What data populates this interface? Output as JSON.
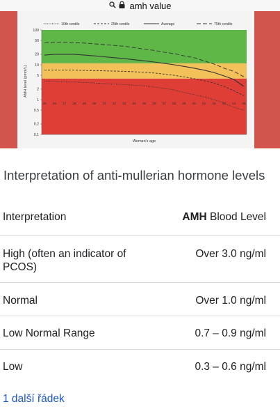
{
  "browser": {
    "search_icon": "search-icon",
    "lock_icon": "lock-icon",
    "url_text": "amh value"
  },
  "chart_data": {
    "type": "line",
    "xlabel": "Woman's age",
    "ylabel": "AMH level (pmol/L)",
    "x": [
      25,
      26,
      27,
      28,
      29,
      30,
      31,
      32,
      33,
      34,
      35,
      36,
      37,
      38,
      39,
      40,
      41,
      42,
      43,
      44,
      45
    ],
    "x_tick_labels": [
      "25",
      "26",
      "27",
      "28",
      "29",
      "30",
      "31",
      "32",
      "33",
      "34",
      "35",
      "36",
      "37",
      "38",
      "39",
      "40",
      "41",
      "42",
      "43",
      "44",
      "45"
    ],
    "y_tick_labels": [
      "100",
      "50",
      "20",
      "10",
      "5",
      "2",
      "1",
      "0.5",
      "0.2",
      "0.1"
    ],
    "y_ticks": [
      100,
      50,
      20,
      10,
      5,
      2,
      1,
      0.5,
      0.2,
      0.1
    ],
    "ylim": [
      0.1,
      100
    ],
    "yscale": "log",
    "bands": [
      {
        "from": 11,
        "to": 100,
        "color": "#5fb748"
      },
      {
        "from": 4,
        "to": 11,
        "color": "#f3c15a"
      },
      {
        "from": 0.1,
        "to": 4,
        "color": "#de3e36"
      }
    ],
    "legend_position": "top",
    "series": [
      {
        "name": "10th centile",
        "style": "dotted",
        "values": [
          3.3,
          3.3,
          3.2,
          3.2,
          3.1,
          3.0,
          2.9,
          2.8,
          2.7,
          2.6,
          2.5,
          2.3,
          2.1,
          1.9,
          1.6,
          1.4,
          1.2,
          1.0,
          0.8,
          0.6,
          0.5
        ]
      },
      {
        "name": "25th centile",
        "style": "dashed",
        "values": [
          7.0,
          7.0,
          7.0,
          7.0,
          6.9,
          6.8,
          6.7,
          6.6,
          6.5,
          6.3,
          6.1,
          5.8,
          5.4,
          5.0,
          4.5,
          4.0,
          3.5,
          3.0,
          2.4,
          1.8,
          1.3
        ]
      },
      {
        "name": "Average",
        "style": "solid",
        "values": [
          19,
          20,
          20,
          20,
          19,
          18,
          17,
          16,
          15,
          14,
          13,
          12,
          11,
          10,
          9,
          8,
          7,
          6,
          4.8,
          3.8,
          2.4
        ]
      },
      {
        "name": "75th centile",
        "style": "longdash",
        "values": [
          42,
          44,
          44,
          43,
          42,
          40,
          38,
          36,
          34,
          31,
          28,
          26,
          23,
          21,
          18,
          16,
          13,
          10.5,
          8,
          6.5,
          4.5
        ]
      }
    ]
  },
  "section": {
    "title": "Interpretation of anti-mullerian hormone levels"
  },
  "table": {
    "header": {
      "col1": "Interpretation",
      "col2_bold": "AMH",
      "col2_rest": " Blood Level"
    },
    "rows": [
      {
        "label": "High (often an indicator of PCOS)",
        "value": "Over 3.0 ng/ml"
      },
      {
        "label": "Normal",
        "value": "Over 1.0 ng/ml"
      },
      {
        "label": "Low Normal Range",
        "value": "0.7 – 0.9 ng/ml"
      },
      {
        "label": "Low",
        "value": "0.3 – 0.6 ng/ml"
      }
    ]
  },
  "more": {
    "label": "1 další řádek"
  }
}
